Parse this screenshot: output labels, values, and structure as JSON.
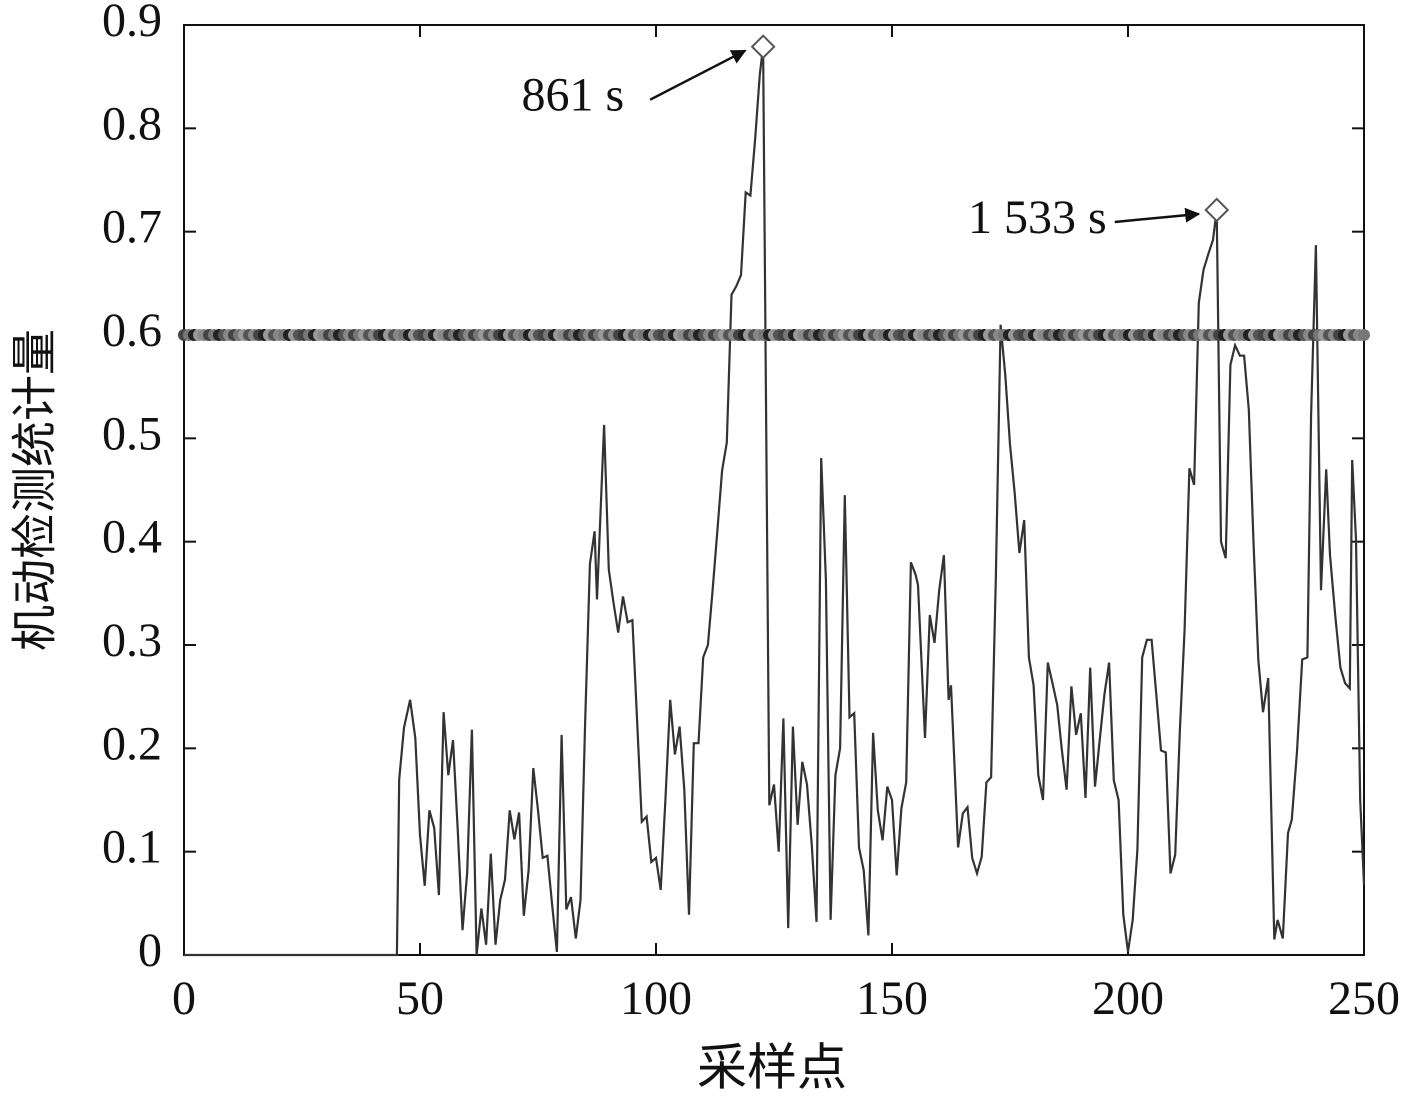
{
  "chart_data": {
    "type": "line",
    "xlabel": "采样点",
    "ylabel": "机动检测统计量",
    "x": [
      0,
      45.1,
      45.6,
      46.6,
      47.9,
      49,
      50,
      51,
      52,
      53,
      54,
      55,
      56,
      57,
      58,
      59,
      60,
      61,
      62,
      63,
      64,
      65,
      66,
      67,
      68,
      69,
      70,
      71,
      72,
      73,
      74,
      75,
      76,
      77,
      78,
      79,
      80,
      81,
      82,
      83,
      84,
      85,
      86,
      87,
      87.5,
      89,
      90,
      91,
      92,
      93,
      94,
      95,
      96,
      97,
      98,
      99,
      100,
      101,
      102,
      103,
      104,
      105,
      106,
      107,
      108,
      109,
      110,
      111,
      112,
      113,
      114,
      115,
      116,
      117,
      118,
      119,
      120,
      121,
      122,
      122.7,
      124,
      125,
      126,
      127,
      128,
      129,
      130,
      131,
      132,
      133,
      134,
      135,
      136,
      137,
      138,
      139,
      140,
      141,
      142,
      143,
      144,
      145,
      146,
      147,
      148,
      149,
      150,
      151,
      152,
      153,
      154,
      155,
      155.5,
      157,
      158,
      159,
      160,
      161,
      162,
      162.5,
      164,
      165,
      166,
      167,
      168,
      169,
      170,
      171,
      172,
      173,
      174,
      175,
      176,
      177,
      178,
      179,
      180,
      181,
      182,
      183,
      184,
      185,
      186,
      187,
      188,
      189,
      190,
      191,
      192,
      193,
      194,
      195,
      196,
      197,
      198,
      199,
      200,
      201,
      202,
      203,
      204,
      205,
      206,
      207,
      208,
      209,
      210,
      211,
      212,
      213,
      214,
      215,
      216,
      217,
      218,
      218.8,
      219.7,
      220.7,
      221.7,
      222.7,
      223.7,
      224.6,
      225.6,
      226.6,
      227.6,
      228.6,
      229.7,
      231,
      231.7,
      232.8,
      233.9,
      234.7,
      235.8,
      236.9,
      238,
      238.8,
      239.8,
      240.9,
      242,
      242.8,
      243.9,
      245,
      246,
      247,
      247.5,
      248.3,
      249.2,
      250
    ],
    "values": [
      0,
      0,
      0.17,
      0.22,
      0.247,
      0.21,
      0.116,
      0.067,
      0.14,
      0.123,
      0.058,
      0.235,
      0.174,
      0.208,
      0.12,
      0.024,
      0.08,
      0.218,
      0,
      0.045,
      0.01,
      0.098,
      0.01,
      0.053,
      0.073,
      0.14,
      0.112,
      0.138,
      0.038,
      0.082,
      0.181,
      0.14,
      0.094,
      0.096,
      0.048,
      0.003,
      0.213,
      0.044,
      0.056,
      0.016,
      0.053,
      0.227,
      0.378,
      0.41,
      0.344,
      0.513,
      0.373,
      0.341,
      0.312,
      0.347,
      0.322,
      0.324,
      0.227,
      0.129,
      0.134,
      0.09,
      0.094,
      0.063,
      0.15,
      0.247,
      0.194,
      0.221,
      0.16,
      0.039,
      0.205,
      0.205,
      0.288,
      0.3,
      0.353,
      0.411,
      0.469,
      0.496,
      0.639,
      0.647,
      0.658,
      0.738,
      0.735,
      0.789,
      0.852,
      0.879,
      0.145,
      0.165,
      0.1,
      0.229,
      0.026,
      0.221,
      0.126,
      0.187,
      0.165,
      0.106,
      0.032,
      0.481,
      0.363,
      0.034,
      0.174,
      0.2,
      0.445,
      0.23,
      0.234,
      0.104,
      0.082,
      0.019,
      0.215,
      0.14,
      0.111,
      0.163,
      0.15,
      0.077,
      0.142,
      0.167,
      0.38,
      0.368,
      0.358,
      0.21,
      0.329,
      0.302,
      0.353,
      0.387,
      0.247,
      0.261,
      0.104,
      0.137,
      0.143,
      0.094,
      0.079,
      0.095,
      0.167,
      0.172,
      0.363,
      0.61,
      0.561,
      0.494,
      0.447,
      0.389,
      0.421,
      0.288,
      0.261,
      0.174,
      0.15,
      0.283,
      0.263,
      0.242,
      0.198,
      0.16,
      0.26,
      0.213,
      0.234,
      0.152,
      0.278,
      0.163,
      0.208,
      0.252,
      0.283,
      0.169,
      0.15,
      0.039,
      0.003,
      0.034,
      0.102,
      0.288,
      0.305,
      0.305,
      0.252,
      0.198,
      0.196,
      0.079,
      0.097,
      0.218,
      0.315,
      0.471,
      0.455,
      0.631,
      0.663,
      0.678,
      0.692,
      0.721,
      0.4,
      0.384,
      0.571,
      0.59,
      0.58,
      0.58,
      0.528,
      0.397,
      0.286,
      0.235,
      0.268,
      0.015,
      0.034,
      0.016,
      0.118,
      0.131,
      0.197,
      0.286,
      0.288,
      0.523,
      0.687,
      0.353,
      0.47,
      0.387,
      0.329,
      0.278,
      0.263,
      0.258,
      0.479,
      0.402,
      0.15,
      0.068
    ],
    "color": "#333333",
    "threshold": 0.6,
    "annotations": [
      {
        "text": "861 s",
        "x": 122.7,
        "y": 0.879
      },
      {
        "text": "1 533 s",
        "x": 218.8,
        "y": 0.721
      }
    ],
    "xlim": [
      0,
      250
    ],
    "xticks": [
      0,
      50,
      100,
      150,
      200,
      250
    ],
    "ylim": [
      0,
      0.9
    ],
    "yticks": [
      0,
      0.1,
      0.2,
      0.3,
      0.4,
      0.5,
      0.6,
      0.7,
      0.8,
      0.9
    ]
  }
}
